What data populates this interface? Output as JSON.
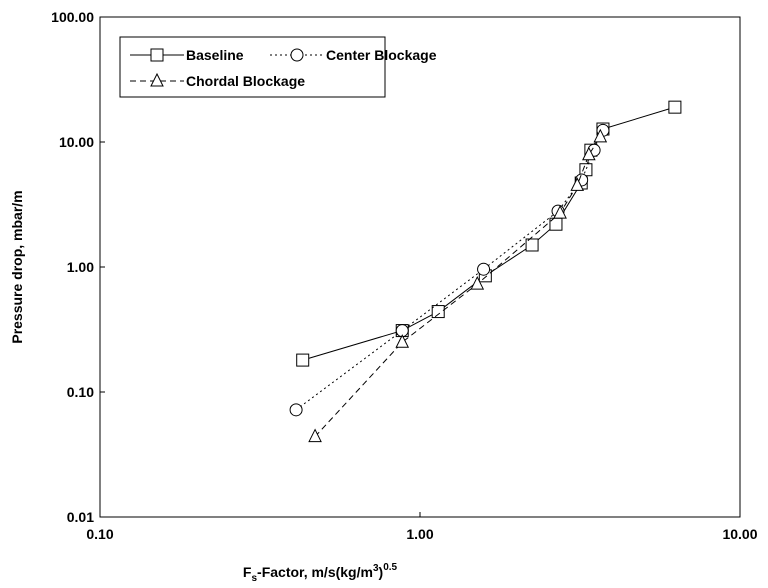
{
  "chart_data": {
    "type": "line",
    "x_label_parts": [
      "F",
      "s",
      "-Factor,  m/s(kg/m",
      "3",
      ")",
      "0.5"
    ],
    "y_label": "Pressure drop, mbar/m",
    "xlog": true,
    "ylog": true,
    "xlim": [
      0.1,
      10
    ],
    "ylim": [
      0.01,
      100
    ],
    "xticks": [
      {
        "value": 0.1,
        "label": "0.10"
      },
      {
        "value": 1,
        "label": "1.00"
      },
      {
        "value": 10,
        "label": "10.00"
      }
    ],
    "yticks": [
      {
        "value": 0.01,
        "label": "0.01"
      },
      {
        "value": 0.1,
        "label": "0.10"
      },
      {
        "value": 1,
        "label": "1.00"
      },
      {
        "value": 10,
        "label": "10.00"
      },
      {
        "value": 100,
        "label": "100.00"
      }
    ],
    "legend": "top-left",
    "series": [
      {
        "name": "Baseline",
        "color": "#000000",
        "marker": "square",
        "dash": "solid",
        "x": [
          0.43,
          0.88,
          1.14,
          1.6,
          2.24,
          2.66,
          3.19,
          3.3,
          3.42,
          3.73,
          6.26
        ],
        "values": [
          0.18,
          0.31,
          0.44,
          0.85,
          1.5,
          2.2,
          4.7,
          6.0,
          8.6,
          12.7,
          19
        ]
      },
      {
        "name": "Center Blockage",
        "color": "#000000",
        "marker": "circle",
        "dash": "dotted",
        "x": [
          0.41,
          0.88,
          1.58,
          2.7,
          3.2,
          3.5,
          3.73
        ],
        "values": [
          0.072,
          0.31,
          0.96,
          2.8,
          4.97,
          8.6,
          12.4
        ]
      },
      {
        "name": "Chordal Blockage",
        "color": "#000000",
        "marker": "triangle",
        "dash": "dashed",
        "x": [
          0.47,
          0.88,
          1.51,
          2.74,
          3.1,
          3.37,
          3.66
        ],
        "values": [
          0.044,
          0.25,
          0.73,
          2.7,
          4.5,
          7.9,
          11
        ]
      }
    ]
  }
}
